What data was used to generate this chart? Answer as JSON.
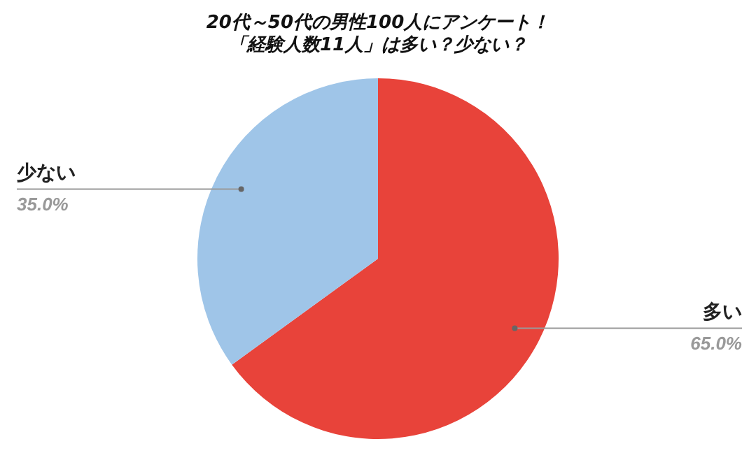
{
  "chart_data": {
    "type": "pie",
    "title": "20代～50代の男性100人にアンケート！「経験人数11人」は多い？少ない？",
    "categories": [
      "多い",
      "少ない"
    ],
    "values": [
      65,
      35
    ],
    "colors": [
      "#e8433a",
      "#9fc5e8"
    ],
    "value_labels": [
      "65.0%",
      "35.0%"
    ],
    "legend": false
  }
}
